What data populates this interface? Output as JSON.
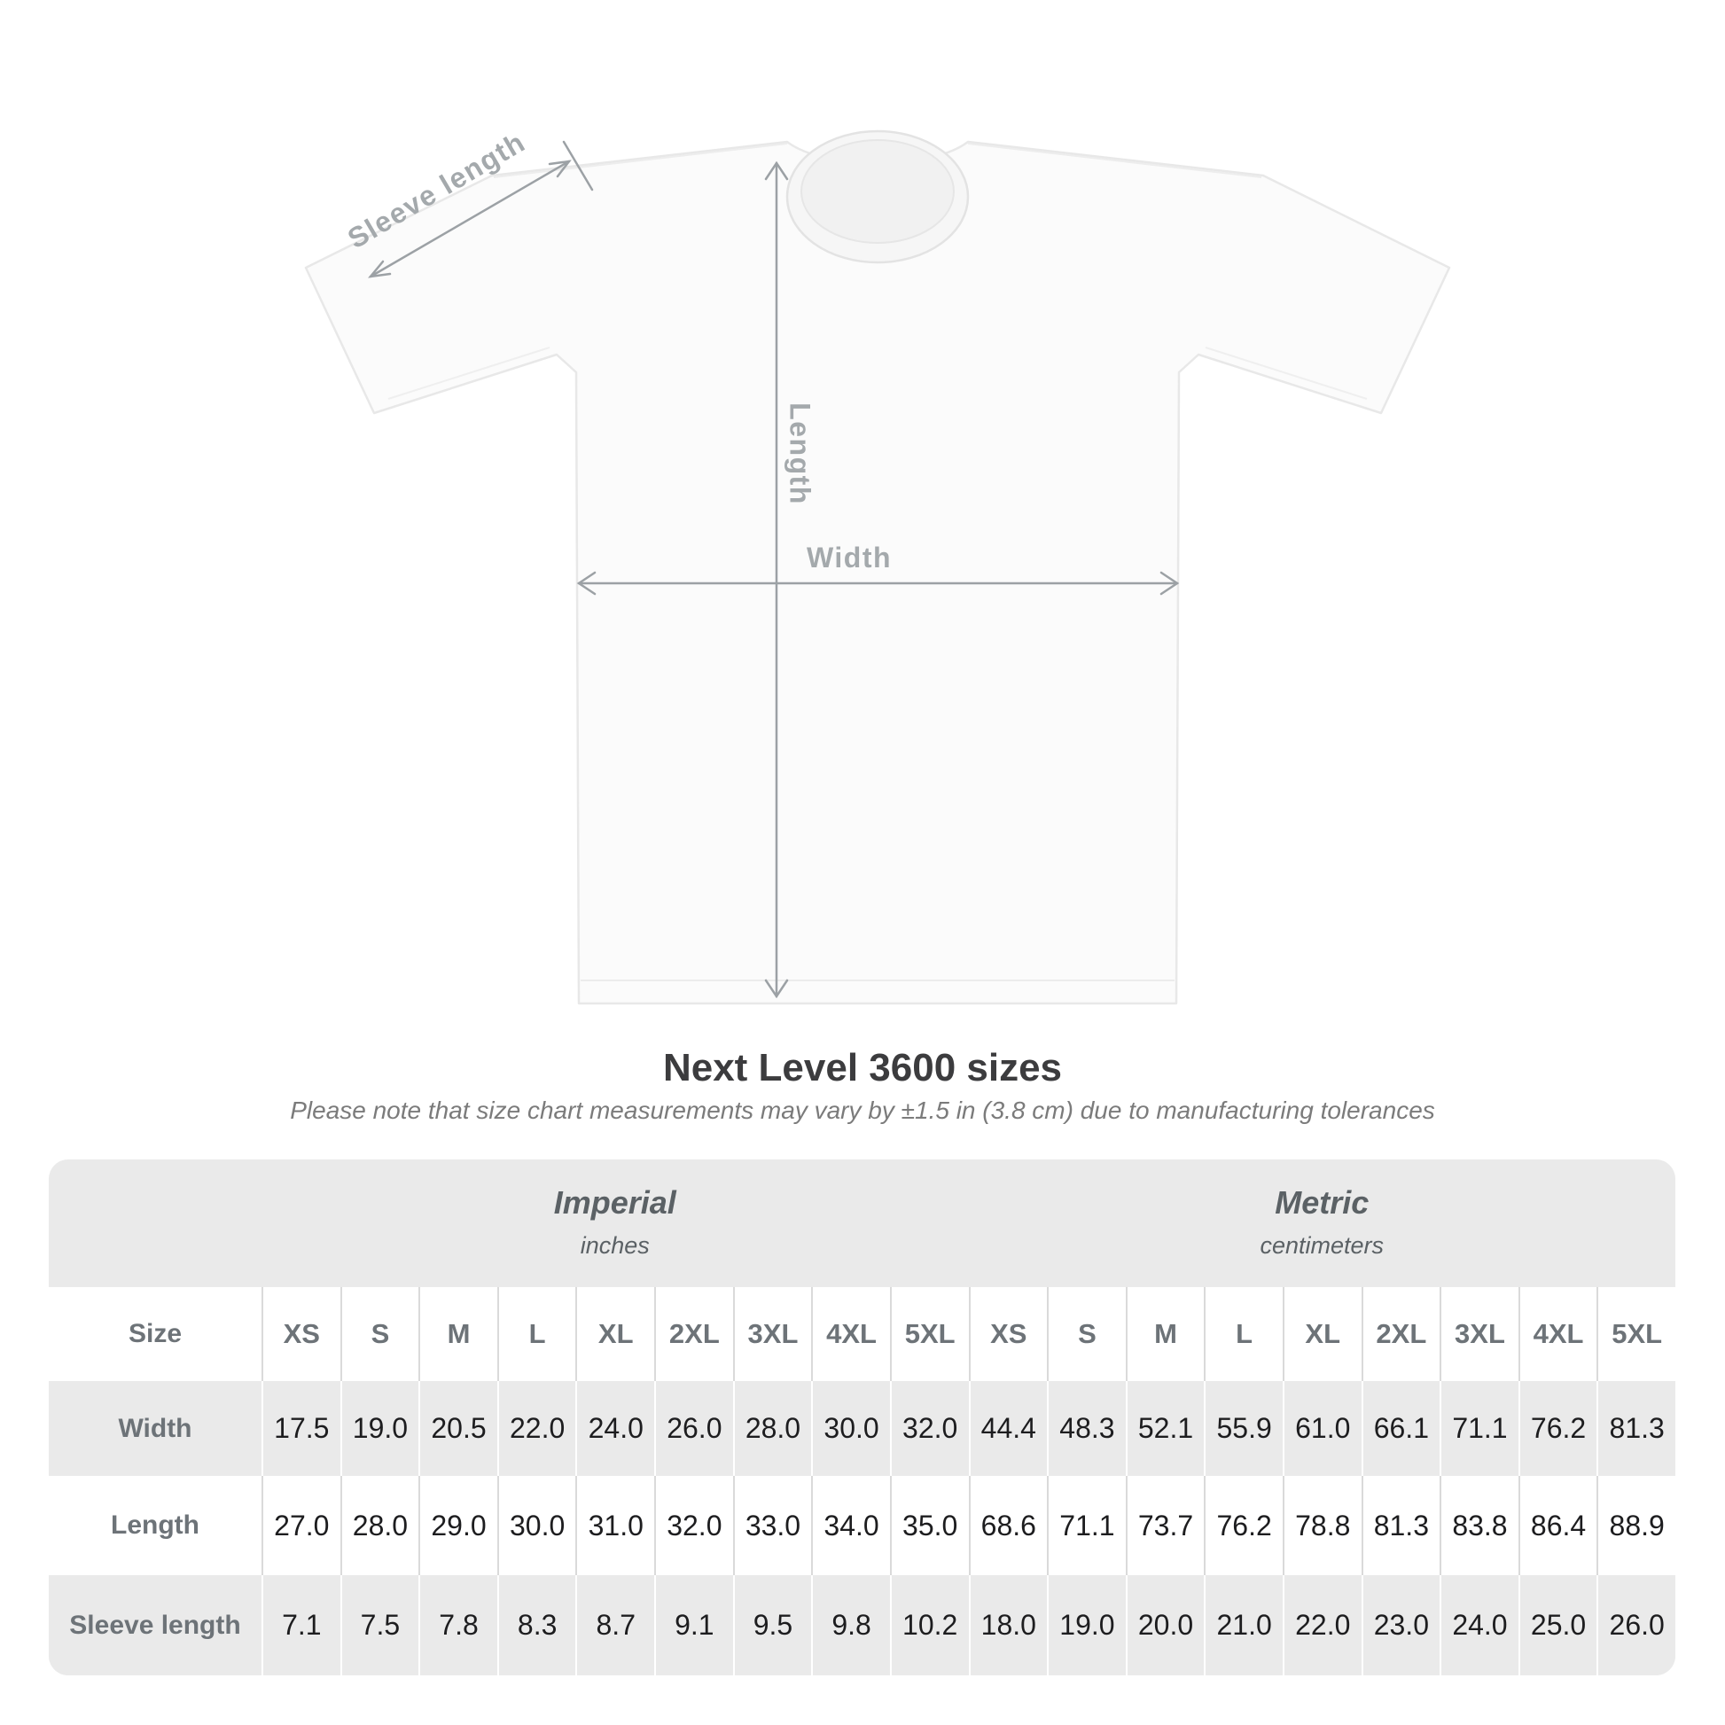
{
  "colors": {
    "panel_bg": "#eaeaea",
    "measure": "#9ca1a5",
    "measure_label": "#a4a9ac",
    "value_text": "#1d1d1f",
    "muted_text": "#6d7378",
    "group_text": "#5b6165",
    "title_text": "#3c3c3e",
    "note_text": "#7b7b7b"
  },
  "figure": {
    "labels": {
      "sleeve": "Sleeve length",
      "length": "Length",
      "width": "Width"
    }
  },
  "title": "Next Level 3600 sizes",
  "note": "Please note that size chart measurements may vary by ±1.5 in (3.8 cm) due to manufacturing tolerances",
  "table": {
    "size_label": "Size",
    "unit_groups": [
      {
        "name": "Imperial",
        "unit": "inches"
      },
      {
        "name": "Metric",
        "unit": "centimeters"
      }
    ],
    "sizes": [
      "XS",
      "S",
      "M",
      "L",
      "XL",
      "2XL",
      "3XL",
      "4XL",
      "5XL"
    ],
    "rows": [
      {
        "label": "Width",
        "imperial": [
          "17.5",
          "19.0",
          "20.5",
          "22.0",
          "24.0",
          "26.0",
          "28.0",
          "30.0",
          "32.0"
        ],
        "metric": [
          "44.4",
          "48.3",
          "52.1",
          "55.9",
          "61.0",
          "66.1",
          "71.1",
          "76.2",
          "81.3"
        ]
      },
      {
        "label": "Length",
        "imperial": [
          "27.0",
          "28.0",
          "29.0",
          "30.0",
          "31.0",
          "32.0",
          "33.0",
          "34.0",
          "35.0"
        ],
        "metric": [
          "68.6",
          "71.1",
          "73.7",
          "76.2",
          "78.8",
          "81.3",
          "83.8",
          "86.4",
          "88.9"
        ]
      },
      {
        "label": "Sleeve length",
        "imperial": [
          "7.1",
          "7.5",
          "7.8",
          "8.3",
          "8.7",
          "9.1",
          "9.5",
          "9.8",
          "10.2"
        ],
        "metric": [
          "18.0",
          "19.0",
          "20.0",
          "21.0",
          "22.0",
          "23.0",
          "24.0",
          "25.0",
          "26.0"
        ]
      }
    ]
  }
}
